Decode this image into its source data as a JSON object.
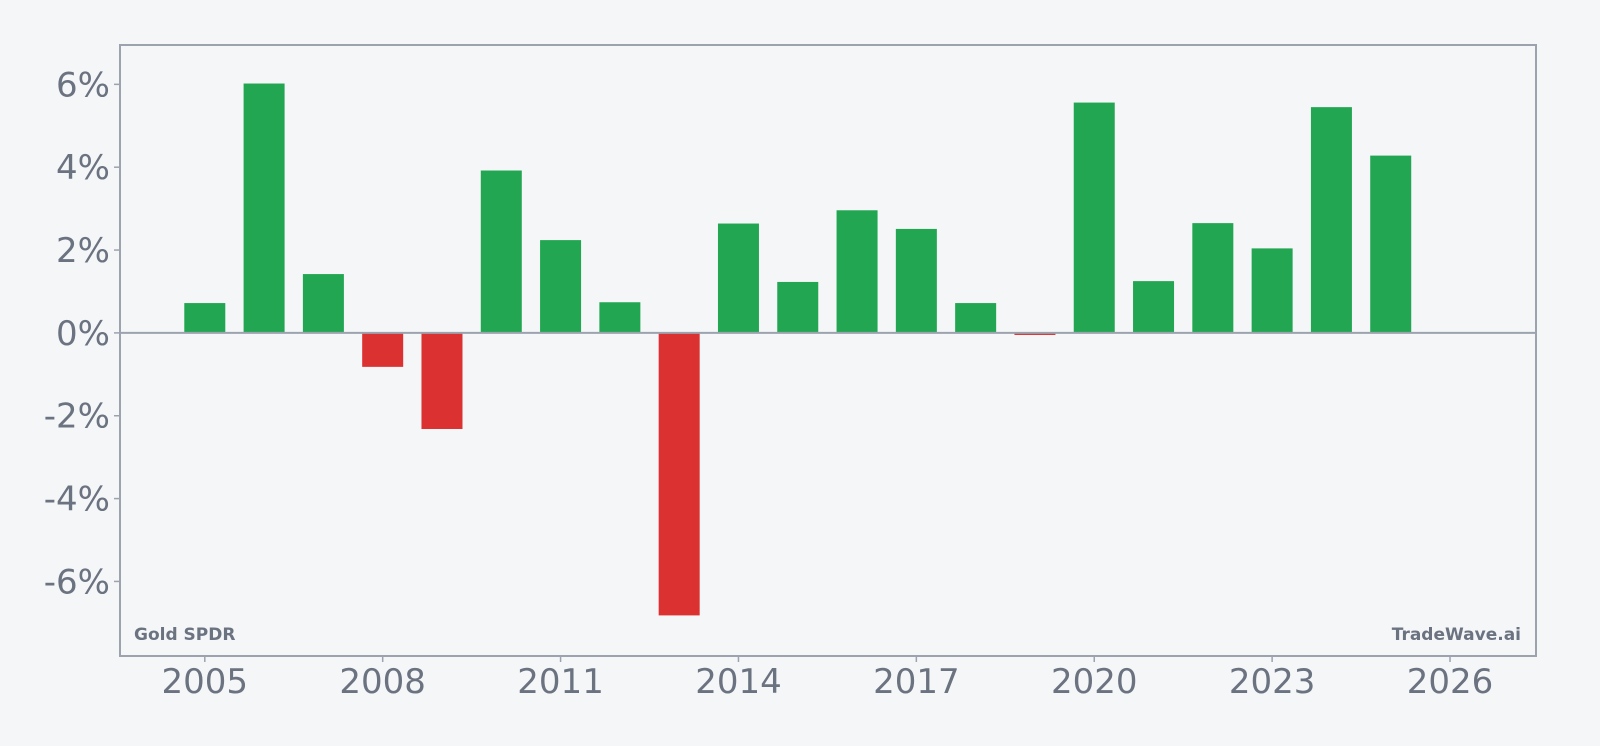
{
  "chart_data": {
    "type": "bar",
    "x": [
      2005,
      2006,
      2007,
      2008,
      2009,
      2010,
      2011,
      2012,
      2013,
      2014,
      2015,
      2016,
      2017,
      2018,
      2019,
      2020,
      2021,
      2022,
      2023,
      2024,
      2025
    ],
    "values": [
      0.72,
      6.02,
      1.42,
      -0.82,
      -2.32,
      3.92,
      2.24,
      0.74,
      -6.82,
      2.64,
      1.23,
      2.96,
      2.51,
      0.72,
      -0.05,
      5.56,
      1.25,
      2.65,
      2.04,
      5.45,
      4.28
    ],
    "xticks": [
      2005,
      2008,
      2011,
      2014,
      2017,
      2020,
      2023,
      2026
    ],
    "xtick_labels": [
      "2005",
      "2008",
      "2011",
      "2014",
      "2017",
      "2020",
      "2023",
      "2026"
    ],
    "yticks": [
      -6,
      -4,
      -2,
      0,
      2,
      4,
      6
    ],
    "ytick_labels": [
      "-6%",
      "-4%",
      "-2%",
      "0%",
      "2%",
      "4%",
      "6%"
    ],
    "xlim": [
      2003.57,
      2027.45
    ],
    "ylim": [
      -7.8,
      6.95
    ],
    "title": "",
    "xlabel": "",
    "ylabel": "",
    "grid": false,
    "legend": "none",
    "zero_line": true,
    "colors": {
      "positive": "#22a652",
      "negative": "#dc3131",
      "axis": "#9ca3af",
      "text": "#6b7280",
      "background": "#f4f6f8"
    }
  },
  "watermarks": {
    "left": "Gold SPDR",
    "right": "TradeWave.ai"
  }
}
